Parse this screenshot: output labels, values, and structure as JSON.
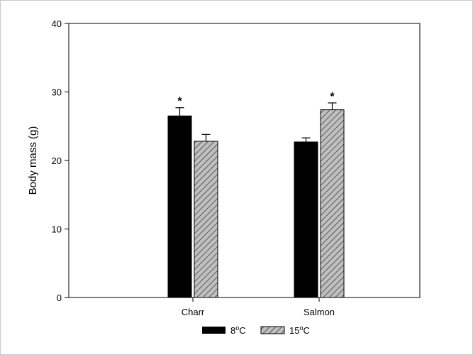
{
  "colors": {
    "background": "#ffffff",
    "axis": "#000000",
    "series_8C_fill": "#000000",
    "series_15C_fill": "#bfbfbf",
    "hatch_line": "#404040"
  },
  "chart_data": {
    "type": "bar",
    "title": "",
    "xlabel": "",
    "ylabel": "Body mass (g)",
    "ylim": [
      0,
      40
    ],
    "yticks": [
      "0",
      "10",
      "20",
      "30",
      "40"
    ],
    "categories": [
      "Charr",
      "Salmon"
    ],
    "grid": false,
    "legend_placement": "bottom-center",
    "series": [
      {
        "name": "8",
        "name_sup": "o",
        "name_suffix": "C",
        "pattern": "solid-black",
        "values": [
          26.5,
          22.7
        ],
        "errors": [
          1.2,
          0.6
        ],
        "significance": [
          "*",
          ""
        ]
      },
      {
        "name": "15",
        "name_sup": "o",
        "name_suffix": "C",
        "pattern": "diagonal-hatch",
        "values": [
          22.8,
          27.4
        ],
        "errors": [
          1.0,
          1.0
        ],
        "significance": [
          "",
          "*"
        ]
      }
    ]
  }
}
